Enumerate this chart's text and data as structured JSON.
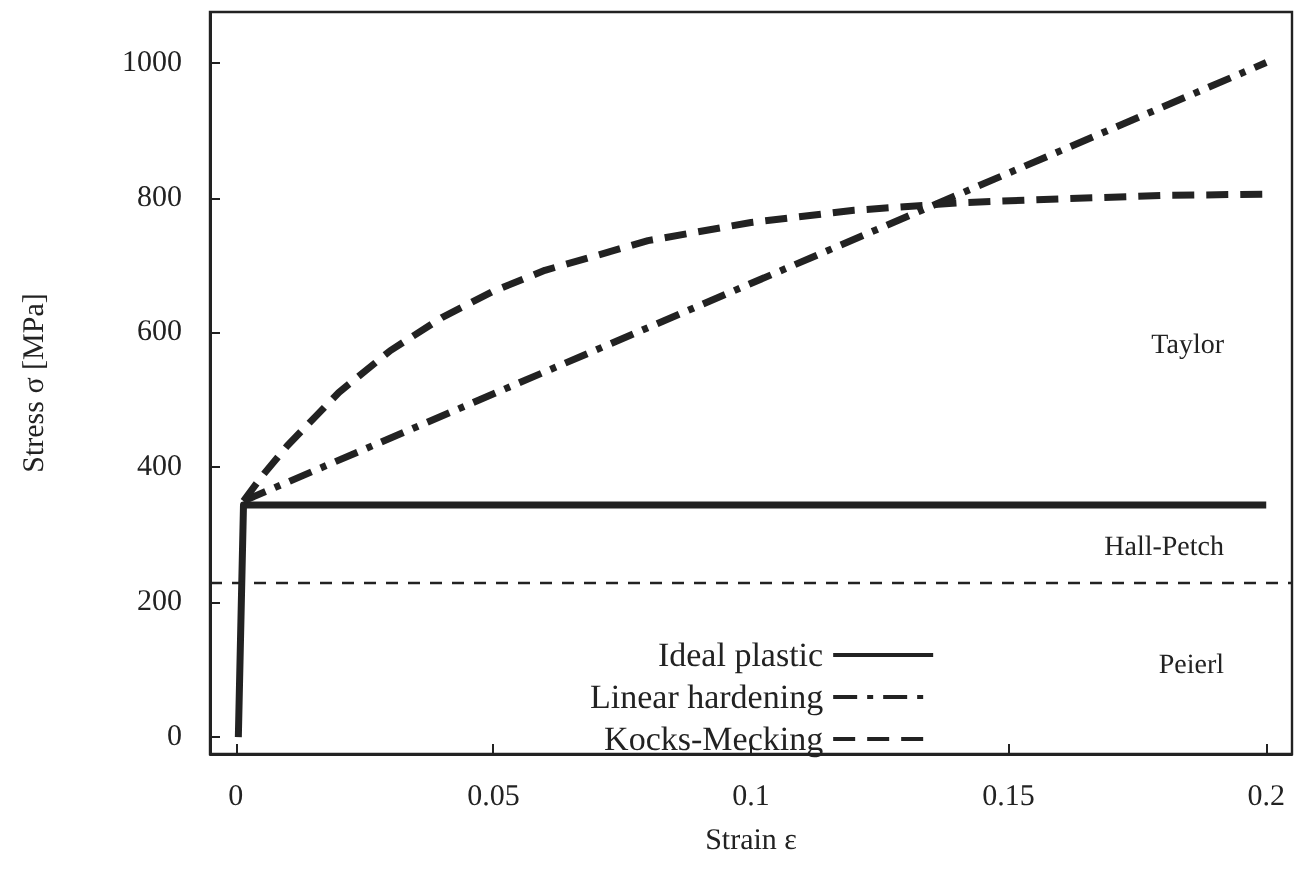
{
  "chart_data": {
    "type": "line",
    "xlabel": "Strain ε",
    "ylabel": "Stress σ [MPa]",
    "xlim": [
      -0.005,
      0.205
    ],
    "xticks": [
      0,
      0.05,
      0.1,
      0.15,
      0.2
    ],
    "ylim": [
      -25,
      1075
    ],
    "yticks": [
      0,
      200,
      400,
      600,
      800,
      1000
    ],
    "grid": false,
    "legend": "bottom",
    "marker": "none",
    "series": [
      {
        "name": "Ideal plastic",
        "color": "#222222",
        "line_style": "solid",
        "x": [
          0.0005,
          0.0015,
          0.2
        ],
        "values": [
          0,
          344,
          344
        ]
      },
      {
        "name": "Linear hardening",
        "color": "#222222",
        "line_style": "dashdot",
        "x": [
          0.0015,
          0.2
        ],
        "values": [
          350,
          1000
        ]
      },
      {
        "name": "Kocks-Mecking",
        "color": "#222222",
        "line_style": "dashed",
        "x": [
          0.0015,
          0.005,
          0.01,
          0.02,
          0.03,
          0.04,
          0.05,
          0.06,
          0.08,
          0.1,
          0.12,
          0.14,
          0.16,
          0.18,
          0.2
        ],
        "values": [
          350,
          386,
          432,
          511,
          573,
          622,
          661,
          692,
          736,
          763,
          781,
          792,
          798,
          803,
          805
        ]
      }
    ],
    "ref_lines": [
      {
        "axis": "y",
        "value": 229,
        "color": "#222222",
        "line_style": "dashed"
      }
    ],
    "annotations": [
      "Taylor",
      "Hall-Petch",
      "Peierl"
    ]
  }
}
